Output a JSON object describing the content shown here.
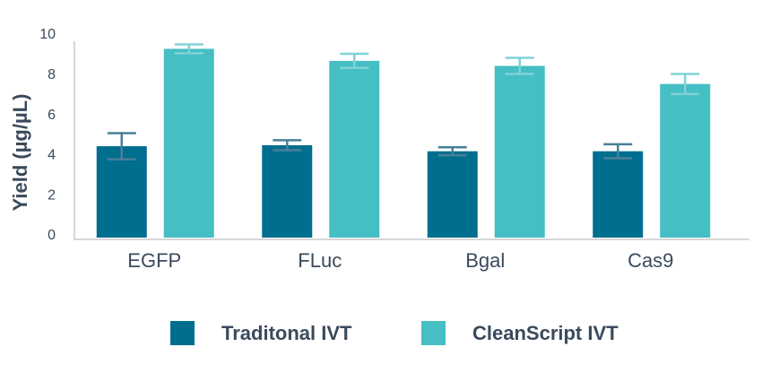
{
  "chart_data": {
    "type": "bar",
    "y_label": "Yield (µg/µL)",
    "categories": [
      "EGFP",
      "FLuc",
      "Bgal",
      "Cas9"
    ],
    "series": [
      {
        "name": "Traditonal IVT",
        "color": "#006e8f",
        "values": [
          4.55,
          4.6,
          4.3,
          4.3
        ],
        "errors": [
          0.65,
          0.25,
          0.2,
          0.35
        ]
      },
      {
        "name": "CleanScript IVT",
        "color": "#45bec4",
        "values": [
          9.4,
          8.8,
          8.55,
          7.65
        ],
        "errors": [
          0.22,
          0.35,
          0.4,
          0.5
        ]
      }
    ],
    "ylim": [
      0,
      10
    ],
    "yticks": [
      0,
      2,
      4,
      6,
      8,
      10
    ],
    "grid": false,
    "legend": "bottom"
  }
}
